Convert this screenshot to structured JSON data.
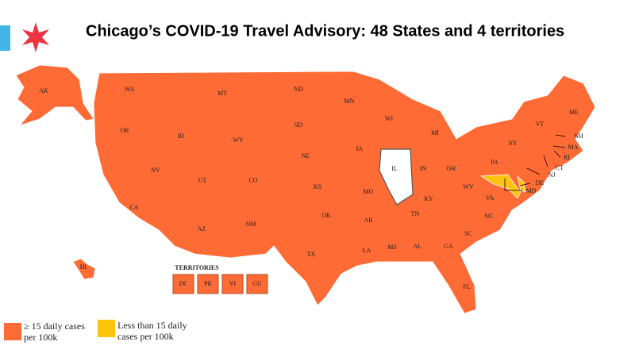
{
  "title": "Chicago’s COVID-19 Travel Advisory: 48 States and 4 territories",
  "states": [
    "AK",
    "WA",
    "MT",
    "ND",
    "MN",
    "WI",
    "MI",
    "OR",
    "ID",
    "WY",
    "SD",
    "IA",
    "NE",
    "IL",
    "IN",
    "OH",
    "PA",
    "NY",
    "VT",
    "ME",
    "NH",
    "MA",
    "RI",
    "CT",
    "NJ",
    "DE",
    "MD",
    "NV",
    "UT",
    "CO",
    "KS",
    "MO",
    "KY",
    "WV",
    "VA",
    "CA",
    "AZ",
    "NM",
    "OK",
    "AR",
    "TN",
    "NC",
    "SC",
    "TX",
    "LA",
    "MS",
    "AL",
    "GA",
    "FL",
    "HI"
  ],
  "territories": {
    "heading": "TERRITORIES",
    "items": [
      "DC",
      "PR",
      "VI",
      "GU"
    ]
  },
  "legend": [
    {
      "label": "≥ 15 daily cases per 100k",
      "color": "#ff6b35"
    },
    {
      "label": "Less than 15 daily cases per 100k",
      "color": "#ffc20e"
    }
  ]
}
